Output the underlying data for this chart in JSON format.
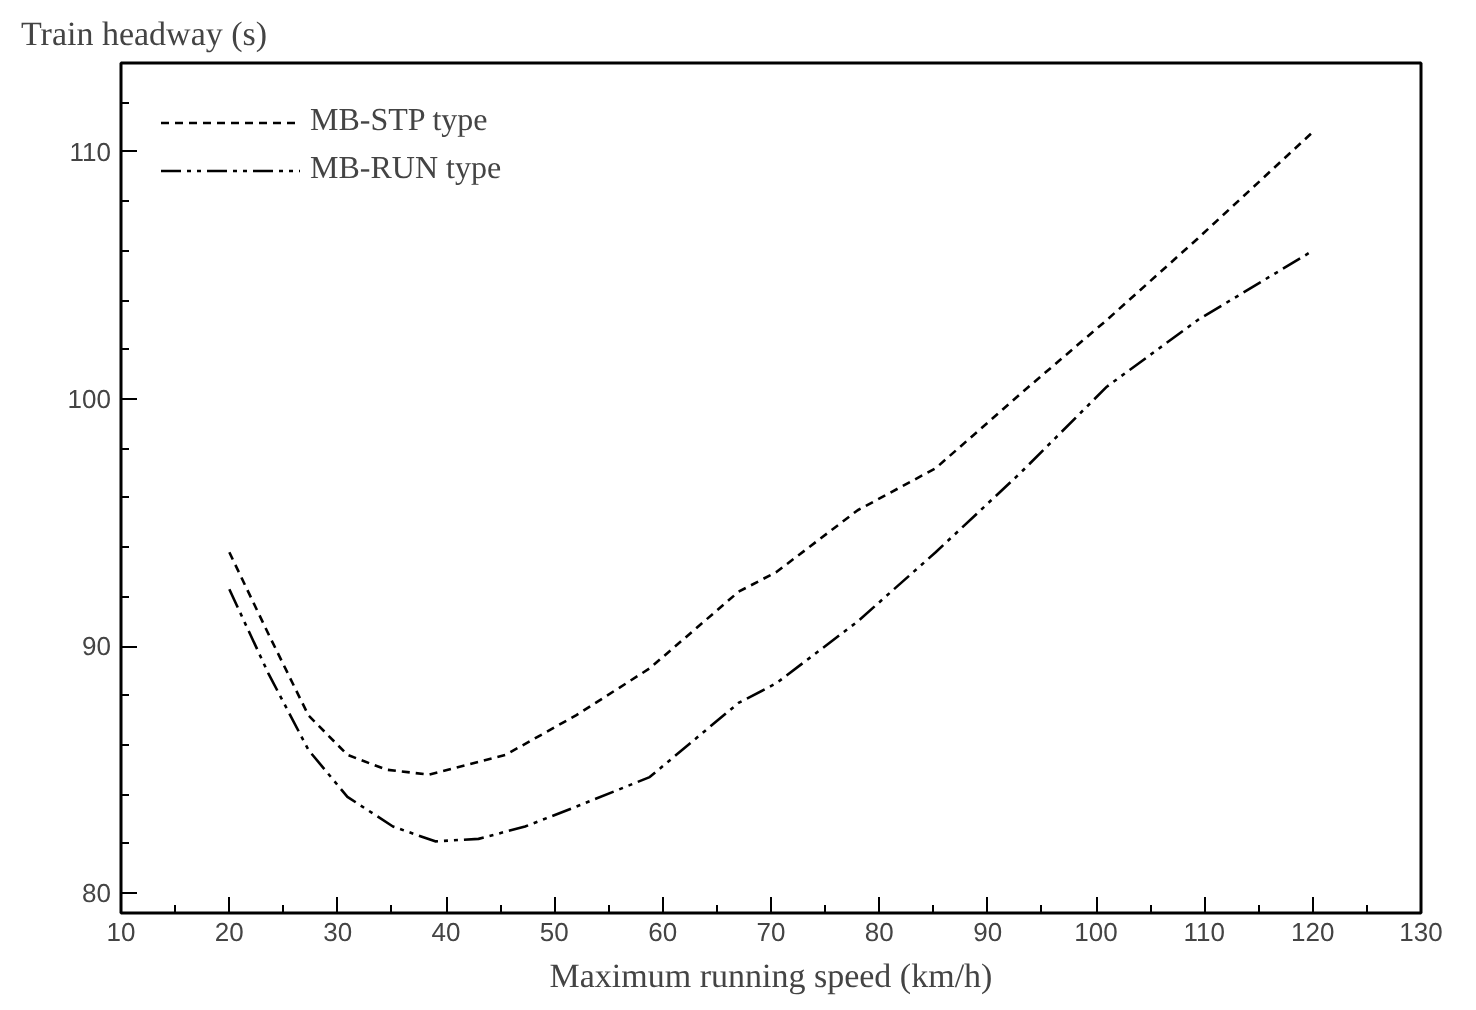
{
  "chart_data": {
    "type": "line",
    "xlabel": "Maximum running speed (km/h)",
    "ylabel": "Train headway (s)",
    "xlim": [
      10,
      130
    ],
    "xticks": [
      10,
      20,
      30,
      40,
      50,
      60,
      70,
      80,
      90,
      100,
      110,
      120,
      130
    ],
    "ylim": [
      79.2,
      113.6
    ],
    "yticks": [
      80,
      90,
      100,
      110
    ],
    "grid": false,
    "legend": "top left",
    "series": [
      {
        "name": "MB-STP type",
        "color": "#000000",
        "line_style": "dashed",
        "x": [
          20,
          23.6,
          27.3,
          30.9,
          34.5,
          38.4,
          45.5,
          52,
          58.8,
          67,
          70.5,
          78,
          85.2,
          93,
          101,
          109.4,
          120
        ],
        "values": [
          93.8,
          90.5,
          87.2,
          85.6,
          85.0,
          84.8,
          85.6,
          87.2,
          89.1,
          92.2,
          93.0,
          95.5,
          97.2,
          100.2,
          103.2,
          106.5,
          110.8
        ]
      },
      {
        "name": "MB-RUN type",
        "color": "#000000",
        "line_style": "dashdotdot",
        "x": [
          20,
          23.6,
          27.3,
          30.9,
          35.1,
          39,
          43,
          47.3,
          52,
          58.8,
          67,
          70.5,
          78,
          85.2,
          93,
          101,
          109.4,
          120
        ],
        "values": [
          92.3,
          88.9,
          85.8,
          83.9,
          82.7,
          82.1,
          82.2,
          82.7,
          83.5,
          84.7,
          87.7,
          88.5,
          91.0,
          93.8,
          97.0,
          100.5,
          103.2,
          106.0
        ]
      }
    ]
  }
}
